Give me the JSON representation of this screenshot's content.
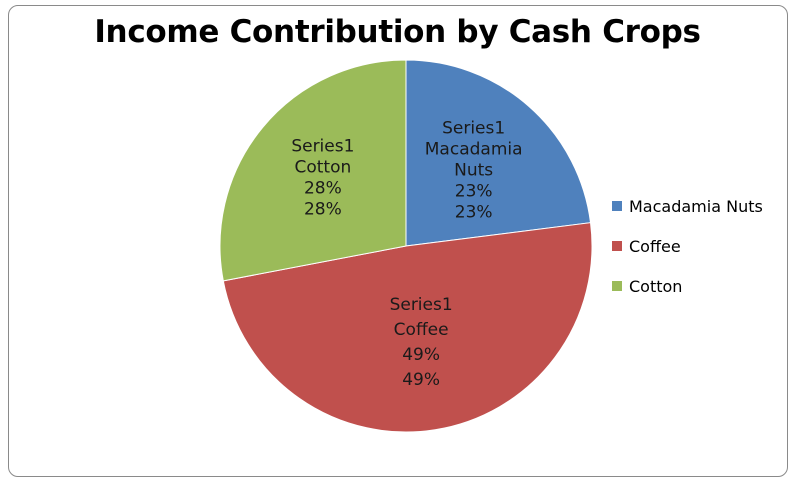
{
  "chart_data": {
    "type": "pie",
    "title": "Income Contribution by Cash Crops",
    "series_name": "Series1",
    "categories": [
      "Macadamia Nuts",
      "Coffee",
      "Cotton"
    ],
    "values": [
      23,
      49,
      28
    ],
    "value_unit": "%",
    "colors": [
      "#4f81bd",
      "#c0504d",
      "#9bbb59"
    ],
    "data_labels": [
      [
        "Series1",
        "Macadamia",
        "Nuts",
        "23%",
        "23%"
      ],
      [
        "Series1",
        "Coffee",
        "49%",
        "49%"
      ],
      [
        "Series1",
        "Cotton",
        "28%",
        "28%"
      ]
    ],
    "legend": {
      "position": "right",
      "entries": [
        "Macadamia Nuts",
        "Coffee",
        "Cotton"
      ]
    }
  }
}
